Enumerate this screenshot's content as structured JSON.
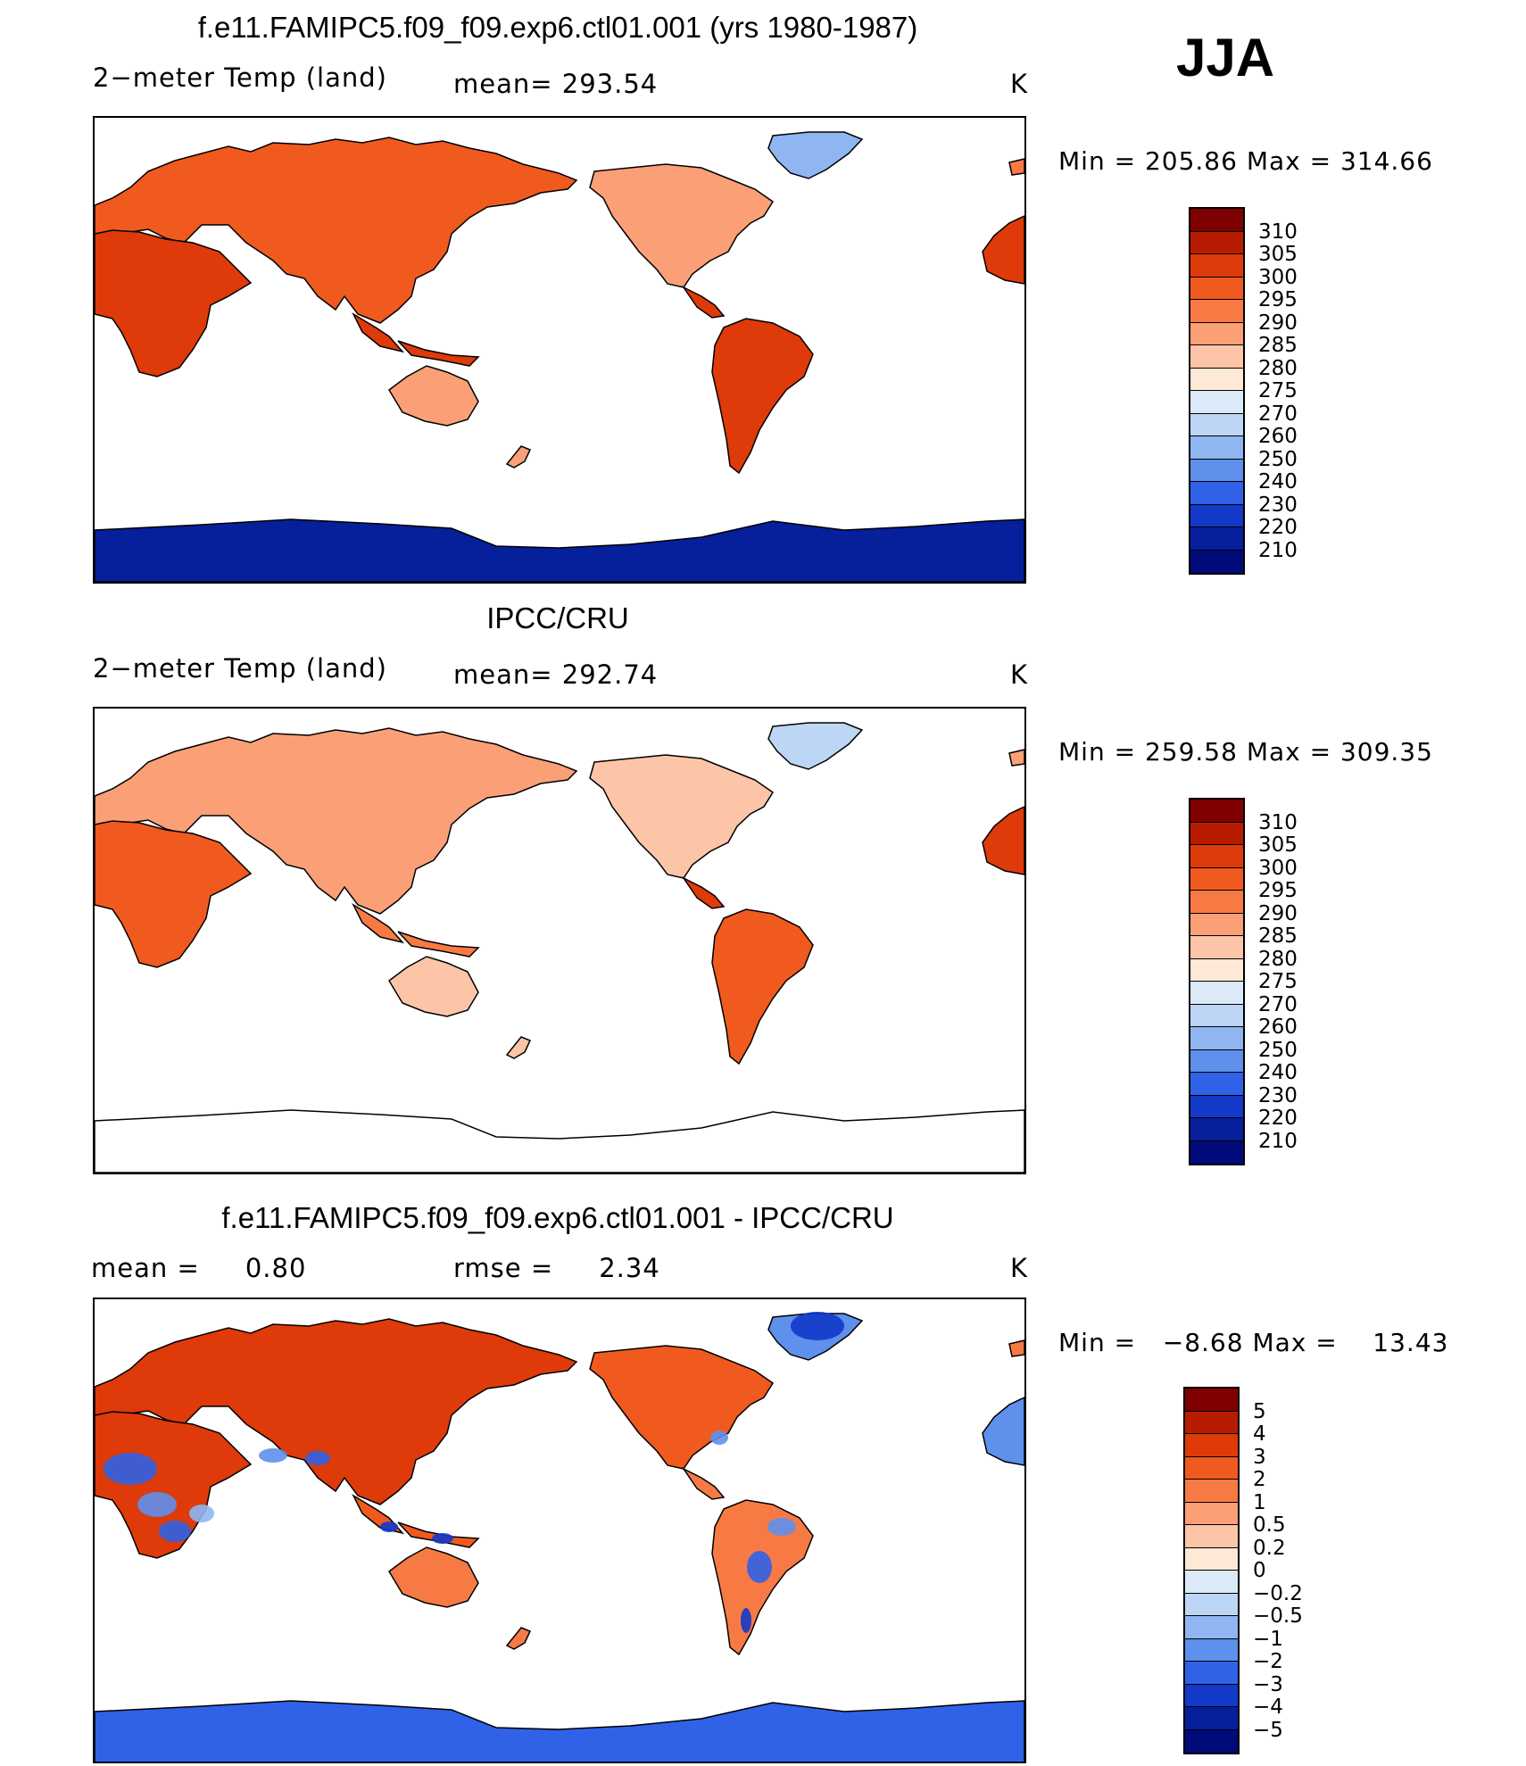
{
  "season": "JJA",
  "panels": [
    {
      "id": "model",
      "title": "f.e11.FAMIPC5.f09_f09.exp6.ctl01.001 (yrs 1980-1987)",
      "left_label": "2−meter Temp (land)",
      "center_label": "mean= 293.54",
      "right_label": "K",
      "minmax": "Min = 205.86 Max = 314.66",
      "field": "model",
      "colorbar": {
        "labels": [
          "310",
          "305",
          "300",
          "295",
          "290",
          "285",
          "280",
          "275",
          "270",
          "260",
          "250",
          "240",
          "230",
          "220",
          "210"
        ],
        "colors": [
          "#7f0000",
          "#b81c00",
          "#de3a0a",
          "#f05a1e",
          "#f77a45",
          "#fb9f77",
          "#fdc5a8",
          "#fee8d6",
          "#dbe9f9",
          "#bed6f6",
          "#8fb6f1",
          "#5e90ec",
          "#2f62e6",
          "#1239c8",
          "#061f9a",
          "#000a78"
        ]
      }
    },
    {
      "id": "obs",
      "title": "IPCC/CRU",
      "left_label": "2−meter Temp (land)",
      "center_label": "mean= 292.74",
      "right_label": "K",
      "minmax": "Min = 259.58 Max = 309.35",
      "field": "obs",
      "colorbar": {
        "labels": [
          "310",
          "305",
          "300",
          "295",
          "290",
          "285",
          "280",
          "275",
          "270",
          "260",
          "250",
          "240",
          "230",
          "220",
          "210"
        ],
        "colors": [
          "#7f0000",
          "#b81c00",
          "#de3a0a",
          "#f05a1e",
          "#f77a45",
          "#fb9f77",
          "#fdc5a8",
          "#fee8d6",
          "#dbe9f9",
          "#bed6f6",
          "#8fb6f1",
          "#5e90ec",
          "#2f62e6",
          "#1239c8",
          "#061f9a",
          "#000a78"
        ]
      }
    },
    {
      "id": "diff",
      "title": "f.e11.FAMIPC5.f09_f09.exp6.ctl01.001 - IPCC/CRU",
      "left_label": "mean =     0.80",
      "center_label": "rmse =     2.34",
      "right_label": "K",
      "minmax": "Min =   −8.68 Max =    13.43",
      "field": "diff",
      "colorbar": {
        "labels": [
          "5",
          "4",
          "3",
          "2",
          "1",
          "0.5",
          "0.2",
          "0",
          "−0.2",
          "−0.5",
          "−1",
          "−2",
          "−3",
          "−4",
          "−5"
        ],
        "colors": [
          "#7f0000",
          "#b81c00",
          "#de3a0a",
          "#f05a1e",
          "#f77a45",
          "#fb9f77",
          "#fdc5a8",
          "#fee8d6",
          "#dbe9f9",
          "#bed6f6",
          "#8fb6f1",
          "#5e90ec",
          "#2f62e6",
          "#1239c8",
          "#061f9a",
          "#000a78"
        ]
      }
    }
  ]
}
